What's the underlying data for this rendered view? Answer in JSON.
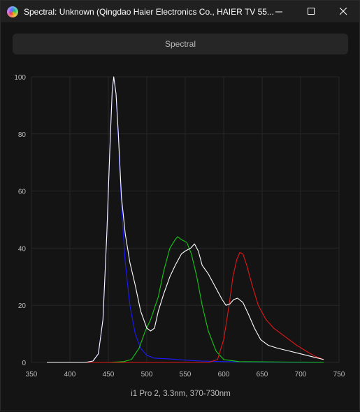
{
  "window": {
    "title": "Spectral: Unknown (Qingdao Haier Electronics Co., HAIER TV 55...",
    "minimize_icon": "minimize-icon",
    "maximize_icon": "maximize-icon",
    "close_icon": "close-icon"
  },
  "toolbar": {
    "spectral_label": "Spectral"
  },
  "footer": {
    "info": "i1 Pro 2, 3.3nm, 370-730nm"
  },
  "chart_data": {
    "type": "line",
    "title": "",
    "xlabel": "",
    "ylabel": "",
    "xlim": [
      350,
      750
    ],
    "ylim": [
      0,
      100
    ],
    "x_ticks": [
      350,
      400,
      450,
      500,
      550,
      600,
      650,
      700,
      750
    ],
    "y_ticks": [
      0,
      20,
      40,
      60,
      80,
      100
    ],
    "grid": true,
    "series": [
      {
        "color": "#1b1bff",
        "points": [
          [
            370,
            0
          ],
          [
            420,
            0
          ],
          [
            430,
            0.5
          ],
          [
            437,
            3
          ],
          [
            443,
            15
          ],
          [
            448,
            45
          ],
          [
            452,
            75
          ],
          [
            455,
            95
          ],
          [
            457,
            100
          ],
          [
            460,
            94
          ],
          [
            463,
            78
          ],
          [
            467,
            55
          ],
          [
            472,
            35
          ],
          [
            478,
            20
          ],
          [
            485,
            10
          ],
          [
            492,
            5
          ],
          [
            500,
            2.5
          ],
          [
            510,
            1.5
          ],
          [
            530,
            1.2
          ],
          [
            550,
            0.8
          ],
          [
            570,
            0.5
          ],
          [
            600,
            0.3
          ],
          [
            650,
            0.1
          ],
          [
            730,
            0
          ]
        ]
      },
      {
        "color": "#16c716",
        "points": [
          [
            370,
            0
          ],
          [
            450,
            0
          ],
          [
            470,
            0.3
          ],
          [
            480,
            1
          ],
          [
            490,
            5
          ],
          [
            498,
            11
          ],
          [
            505,
            15
          ],
          [
            515,
            23
          ],
          [
            522,
            32
          ],
          [
            530,
            40
          ],
          [
            537,
            43
          ],
          [
            540,
            44
          ],
          [
            545,
            43
          ],
          [
            552,
            42
          ],
          [
            558,
            38
          ],
          [
            565,
            30
          ],
          [
            572,
            20
          ],
          [
            580,
            11
          ],
          [
            590,
            4
          ],
          [
            600,
            1
          ],
          [
            620,
            0.3
          ],
          [
            730,
            0
          ]
        ]
      },
      {
        "color": "#e01818",
        "points": [
          [
            370,
            0
          ],
          [
            580,
            0
          ],
          [
            592,
            1
          ],
          [
            600,
            8
          ],
          [
            607,
            20
          ],
          [
            612,
            30
          ],
          [
            617,
            36
          ],
          [
            621,
            38.5
          ],
          [
            625,
            38
          ],
          [
            630,
            34
          ],
          [
            637,
            27
          ],
          [
            645,
            20
          ],
          [
            655,
            15
          ],
          [
            665,
            12
          ],
          [
            680,
            9
          ],
          [
            695,
            6
          ],
          [
            710,
            3.5
          ],
          [
            720,
            2
          ],
          [
            730,
            1
          ]
        ]
      },
      {
        "color": "#ffffff",
        "points": [
          [
            370,
            0
          ],
          [
            420,
            0
          ],
          [
            430,
            0.5
          ],
          [
            437,
            3
          ],
          [
            443,
            15
          ],
          [
            448,
            45
          ],
          [
            452,
            75
          ],
          [
            455,
            95
          ],
          [
            457,
            100
          ],
          [
            460,
            94
          ],
          [
            463,
            80
          ],
          [
            467,
            58
          ],
          [
            472,
            45
          ],
          [
            478,
            35
          ],
          [
            485,
            27
          ],
          [
            492,
            18
          ],
          [
            500,
            12
          ],
          [
            505,
            11
          ],
          [
            510,
            12
          ],
          [
            515,
            18
          ],
          [
            522,
            24
          ],
          [
            530,
            30
          ],
          [
            537,
            34
          ],
          [
            545,
            38
          ],
          [
            550,
            39
          ],
          [
            557,
            40
          ],
          [
            562,
            41.5
          ],
          [
            567,
            39
          ],
          [
            572,
            34
          ],
          [
            580,
            31
          ],
          [
            590,
            26
          ],
          [
            598,
            22
          ],
          [
            603,
            20
          ],
          [
            608,
            20.5
          ],
          [
            613,
            22
          ],
          [
            618,
            22.5
          ],
          [
            625,
            21
          ],
          [
            632,
            17
          ],
          [
            640,
            12
          ],
          [
            648,
            8
          ],
          [
            658,
            6
          ],
          [
            670,
            5
          ],
          [
            685,
            4
          ],
          [
            700,
            3
          ],
          [
            715,
            2
          ],
          [
            730,
            1
          ]
        ]
      }
    ]
  }
}
